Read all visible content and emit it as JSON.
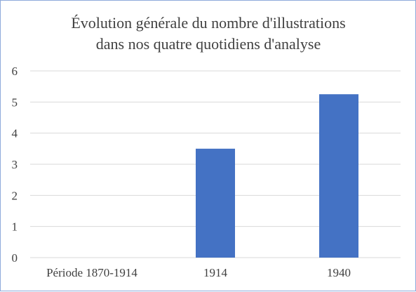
{
  "chart_data": {
    "type": "bar",
    "title": "Évolution générale du nombre d'illustrations dans nos quatre quotidiens d'analyse",
    "title_lines": [
      "Évolution générale du nombre d'illustrations",
      "dans nos quatre quotidiens d'analyse"
    ],
    "categories": [
      "Période 1870-1914",
      "1914",
      "1940"
    ],
    "values": [
      0,
      3.5,
      5.25
    ],
    "xlabel": "",
    "ylabel": "",
    "ylim": [
      0,
      6
    ],
    "yticks": [
      "0",
      "1",
      "2",
      "3",
      "4",
      "5",
      "6"
    ],
    "grid": true,
    "legend": "none",
    "bar_color": "#4472c4",
    "border_color": "#8eaadb"
  }
}
